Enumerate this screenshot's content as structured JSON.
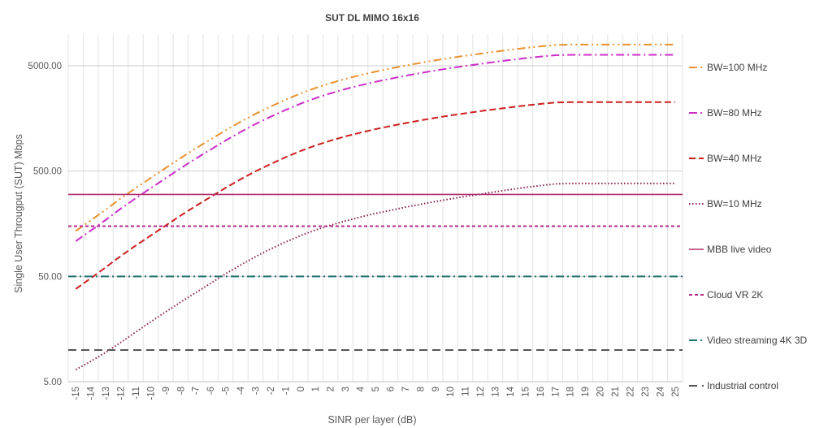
{
  "chart_data": {
    "type": "line",
    "title": "SUT DL MIMO 16x16",
    "xlabel": "SINR per layer (dB)",
    "ylabel": "Single User Througput (SUT) Mbps",
    "y_scale": "log",
    "ylim": [
      5,
      10000
    ],
    "y_ticks": [
      "5.00",
      "50.00",
      "500.00",
      "5000.00"
    ],
    "y_tick_values": [
      5,
      50,
      500,
      5000
    ],
    "categories": [
      -15,
      -14,
      -13,
      -12,
      -11,
      -10,
      -9,
      -8,
      -7,
      -6,
      -5,
      -4,
      -3,
      -2,
      -1,
      0,
      1,
      2,
      3,
      4,
      5,
      6,
      7,
      8,
      9,
      10,
      11,
      12,
      13,
      14,
      15,
      16,
      17,
      18,
      19,
      20,
      21,
      22,
      23,
      24,
      25
    ],
    "grid": "vertical and horizontal major gridlines",
    "legend_position": "right",
    "series": [
      {
        "name": "BW=100 MHz",
        "color": "#e8912f",
        "dash": "dash-dot-dot",
        "values": [
          135,
          170,
          215,
          275,
          345,
          430,
          535,
          665,
          820,
          1000,
          1220,
          1470,
          1750,
          2050,
          2380,
          2730,
          3080,
          3420,
          3760,
          4080,
          4400,
          4710,
          5020,
          5330,
          5640,
          5940,
          6230,
          6520,
          6810,
          7100,
          7380,
          7640,
          7880,
          7950,
          7950,
          7950,
          7950,
          7950,
          7950,
          7950,
          7950
        ]
      },
      {
        "name": "BW=80 MHz",
        "color": "#cc2ec8",
        "dash": "dash-dot",
        "values": [
          108,
          136,
          172,
          220,
          276,
          344,
          428,
          532,
          656,
          800,
          976,
          1176,
          1400,
          1640,
          1904,
          2184,
          2464,
          2736,
          3008,
          3264,
          3520,
          3768,
          4016,
          4264,
          4512,
          4752,
          4984,
          5216,
          5448,
          5680,
          5904,
          6112,
          6300,
          6360,
          6360,
          6360,
          6360,
          6360,
          6360,
          6360,
          6360
        ]
      },
      {
        "name": "BW=40 MHz",
        "color": "#cc1e1e",
        "dash": "dash",
        "values": [
          38,
          48,
          61,
          78,
          98,
          122,
          152,
          189,
          233,
          284,
          347,
          418,
          498,
          583,
          677,
          776,
          876,
          973,
          1069,
          1160,
          1251,
          1339,
          1427,
          1515,
          1603,
          1689,
          1771,
          1854,
          1936,
          2018,
          2098,
          2172,
          2240,
          2260,
          2260,
          2260,
          2260,
          2260,
          2260,
          2260,
          2260
        ]
      },
      {
        "name": "BW=10 MHz",
        "color": "#8b2252",
        "dash": "dot",
        "values": [
          6.5,
          7.8,
          9.5,
          11.8,
          14.8,
          18.5,
          23,
          28.5,
          35,
          43,
          53,
          64,
          77,
          91,
          106,
          122,
          138,
          153,
          168,
          183,
          198,
          212,
          227,
          242,
          257,
          272,
          287,
          302,
          318,
          334,
          350,
          364,
          378,
          382,
          382,
          382,
          382,
          382,
          382,
          382,
          382
        ]
      },
      {
        "name": "MBB live video",
        "color": "#b0306b",
        "dash": "solid",
        "constant": 300
      },
      {
        "name": "Cloud VR 2K",
        "color": "#b52c8f",
        "dash": "short-dash",
        "constant": 150
      },
      {
        "name": "Video streaming 4K 3D",
        "color": "#1f6f6f",
        "dash": "dash-dot",
        "constant": 50
      },
      {
        "name": "Industrial control",
        "color": "#555555",
        "dash": "long-dash",
        "constant": 10
      }
    ]
  }
}
